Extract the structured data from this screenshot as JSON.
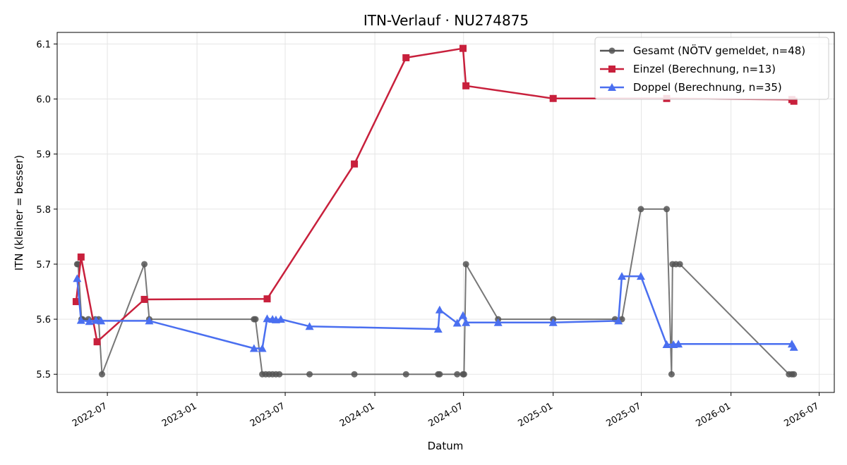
{
  "chart_data": {
    "type": "line",
    "title": "ITN-Verlauf · NU274875",
    "xlabel": "Datum",
    "ylabel": "ITN  (kleiner = besser)",
    "xlim": [
      "2022-03-20",
      "2026-08-01"
    ],
    "ylim": [
      5.467,
      6.121
    ],
    "x_ticks": [
      "2022-07-01",
      "2023-01-01",
      "2023-07-01",
      "2024-01-01",
      "2024-07-01",
      "2025-01-01",
      "2025-07-01",
      "2026-01-01",
      "2026-07-01"
    ],
    "x_tick_labels": [
      "2022-07",
      "2023-01",
      "2023-07",
      "2024-01",
      "2024-07",
      "2025-01",
      "2025-07",
      "2026-01",
      "2026-07"
    ],
    "y_ticks": [
      5.5,
      5.6,
      5.7,
      5.8,
      5.9,
      6.0,
      6.1
    ],
    "y_tick_labels": [
      "5.5",
      "5.6",
      "5.7",
      "5.8",
      "5.9",
      "6.0",
      "6.1"
    ],
    "grid": true,
    "legend_position": "top-right",
    "series": [
      {
        "name": "Gesamt (NÖTV gemeldet, n=48)",
        "color": "#555555",
        "marker": "circle",
        "points": [
          [
            "2022-04-30",
            5.7
          ],
          [
            "2022-05-02",
            5.7
          ],
          [
            "2022-05-09",
            5.6
          ],
          [
            "2022-05-11",
            5.6
          ],
          [
            "2022-05-23",
            5.6
          ],
          [
            "2022-06-06",
            5.6
          ],
          [
            "2022-06-13",
            5.6
          ],
          [
            "2022-06-20",
            5.5
          ],
          [
            "2022-09-15",
            5.7
          ],
          [
            "2022-09-25",
            5.6
          ],
          [
            "2023-04-28",
            5.6
          ],
          [
            "2023-05-01",
            5.6
          ],
          [
            "2023-05-15",
            5.5
          ],
          [
            "2023-05-22",
            5.5
          ],
          [
            "2023-05-29",
            5.5
          ],
          [
            "2023-06-05",
            5.5
          ],
          [
            "2023-06-12",
            5.5
          ],
          [
            "2023-06-19",
            5.5
          ],
          [
            "2023-08-20",
            5.5
          ],
          [
            "2023-11-20",
            5.5
          ],
          [
            "2024-03-05",
            5.5
          ],
          [
            "2024-05-10",
            5.5
          ],
          [
            "2024-05-13",
            5.5
          ],
          [
            "2024-06-18",
            5.5
          ],
          [
            "2024-06-30",
            5.5
          ],
          [
            "2024-07-02",
            5.5
          ],
          [
            "2024-07-06",
            5.7
          ],
          [
            "2024-09-10",
            5.6
          ],
          [
            "2025-01-01",
            5.6
          ],
          [
            "2025-05-08",
            5.6
          ],
          [
            "2025-05-22",
            5.6
          ],
          [
            "2025-06-30",
            5.8
          ],
          [
            "2025-08-22",
            5.8
          ],
          [
            "2025-09-01",
            5.5
          ],
          [
            "2025-09-03",
            5.7
          ],
          [
            "2025-09-10",
            5.7
          ],
          [
            "2025-09-18",
            5.7
          ],
          [
            "2026-04-30",
            5.5
          ],
          [
            "2026-05-06",
            5.5
          ],
          [
            "2026-05-10",
            5.5
          ]
        ]
      },
      {
        "name": "Einzel (Berechnung, n=13)",
        "color": "#c8203c",
        "marker": "square",
        "points": [
          [
            "2022-04-28",
            5.632
          ],
          [
            "2022-05-08",
            5.713
          ],
          [
            "2022-06-10",
            5.559
          ],
          [
            "2022-09-15",
            5.636
          ],
          [
            "2023-05-25",
            5.637
          ],
          [
            "2023-11-20",
            5.882
          ],
          [
            "2024-03-05",
            6.075
          ],
          [
            "2024-06-30",
            6.092
          ],
          [
            "2024-07-06",
            6.024
          ],
          [
            "2025-01-01",
            6.001
          ],
          [
            "2025-08-22",
            6.001
          ],
          [
            "2026-05-06",
            5.999
          ],
          [
            "2026-05-10",
            5.996
          ]
        ]
      },
      {
        "name": "Doppel (Berechnung, n=35)",
        "color": "#4a6ff0",
        "marker": "triangle",
        "points": [
          [
            "2022-04-30",
            5.674
          ],
          [
            "2022-05-08",
            5.598
          ],
          [
            "2022-05-25",
            5.596
          ],
          [
            "2022-06-08",
            5.598
          ],
          [
            "2022-06-18",
            5.597
          ],
          [
            "2022-09-25",
            5.597
          ],
          [
            "2023-04-28",
            5.547
          ],
          [
            "2023-05-15",
            5.547
          ],
          [
            "2023-05-25",
            5.601
          ],
          [
            "2023-06-05",
            5.6
          ],
          [
            "2023-06-12",
            5.599
          ],
          [
            "2023-06-22",
            5.6
          ],
          [
            "2023-08-20",
            5.587
          ],
          [
            "2024-05-10",
            5.582
          ],
          [
            "2024-05-13",
            5.617
          ],
          [
            "2024-06-18",
            5.593
          ],
          [
            "2024-06-30",
            5.607
          ],
          [
            "2024-07-06",
            5.594
          ],
          [
            "2024-09-10",
            5.594
          ],
          [
            "2025-01-01",
            5.594
          ],
          [
            "2025-05-15",
            5.597
          ],
          [
            "2025-05-22",
            5.678
          ],
          [
            "2025-06-30",
            5.678
          ],
          [
            "2025-08-22",
            5.554
          ],
          [
            "2025-09-05",
            5.554
          ],
          [
            "2025-09-15",
            5.555
          ],
          [
            "2026-05-06",
            5.555
          ],
          [
            "2026-05-10",
            5.549
          ]
        ]
      }
    ]
  }
}
